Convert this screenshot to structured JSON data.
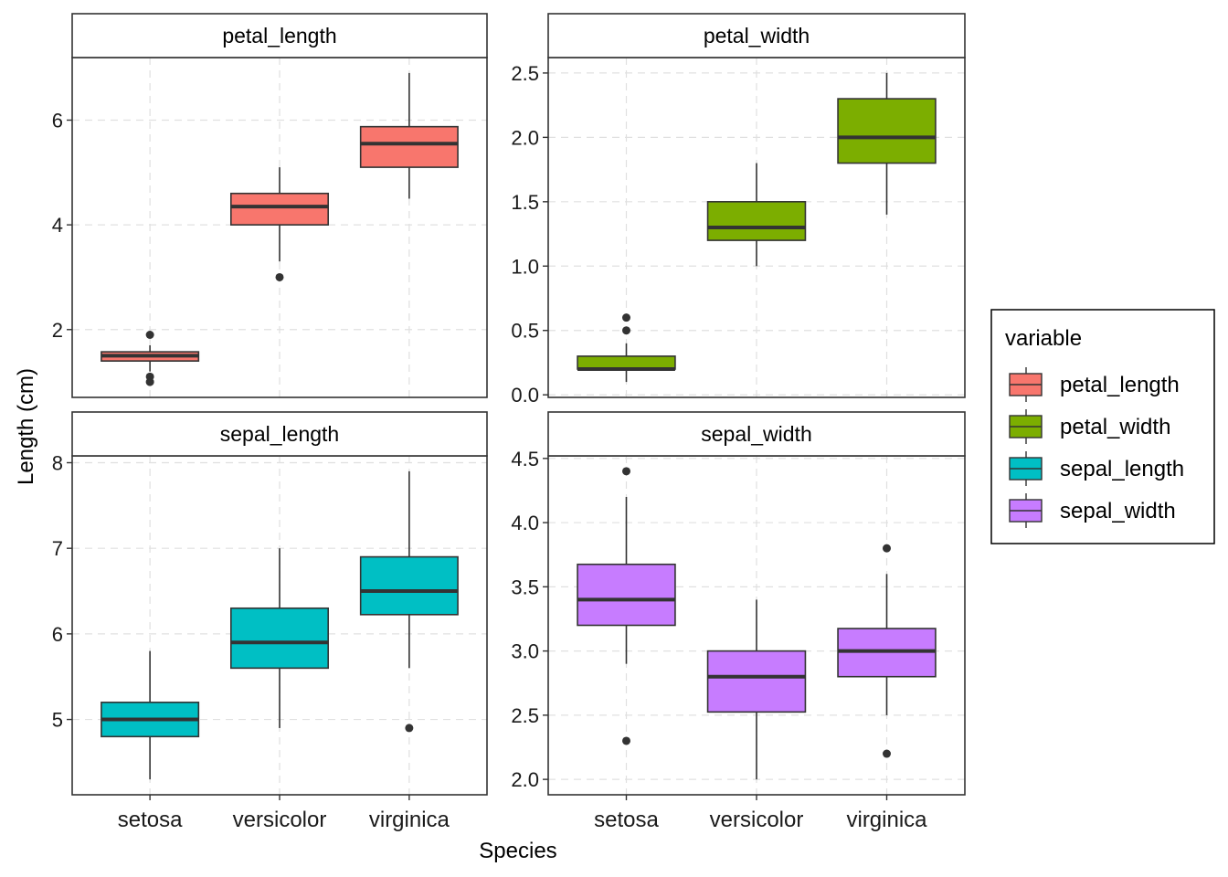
{
  "chart_data": {
    "type": "boxplot",
    "facet_by": "variable",
    "xlabel": "Species",
    "ylabel": "Length (cm)",
    "categories": [
      "setosa",
      "versicolor",
      "virginica"
    ],
    "grid": true,
    "legend": {
      "title": "variable",
      "placement": "right",
      "entries": [
        "petal_length",
        "petal_width",
        "sepal_length",
        "sepal_width"
      ]
    },
    "colors": {
      "petal_length": "#F8766D",
      "petal_width": "#7CAE00",
      "sepal_length": "#00BFC4",
      "sepal_width": "#C77CFF",
      "outline": "#333333",
      "grid": "#e0e0e0"
    },
    "panels": [
      {
        "name": "petal_length",
        "ylim": [
          0.705,
          7.195
        ],
        "yticks": [
          2,
          4,
          6
        ],
        "ytick_labels": [
          "2",
          "4",
          "6"
        ],
        "show_x_labels": false,
        "boxes": [
          {
            "category": "setosa",
            "whisker_low": 1.2,
            "q1": 1.4,
            "median": 1.5,
            "q3": 1.575,
            "whisker_high": 1.7,
            "outliers": [
              1.0,
              1.1,
              1.9
            ]
          },
          {
            "category": "versicolor",
            "whisker_low": 3.3,
            "q1": 4.0,
            "median": 4.35,
            "q3": 4.6,
            "whisker_high": 5.1,
            "outliers": [
              3.0
            ]
          },
          {
            "category": "virginica",
            "whisker_low": 4.5,
            "q1": 5.1,
            "median": 5.55,
            "q3": 5.875,
            "whisker_high": 6.9,
            "outliers": []
          }
        ]
      },
      {
        "name": "petal_width",
        "ylim": [
          -0.02,
          2.62
        ],
        "yticks": [
          0.0,
          0.5,
          1.0,
          1.5,
          2.0,
          2.5
        ],
        "ytick_labels": [
          "0.0",
          "0.5",
          "1.0",
          "1.5",
          "2.0",
          "2.5"
        ],
        "show_x_labels": false,
        "boxes": [
          {
            "category": "setosa",
            "whisker_low": 0.1,
            "q1": 0.2,
            "median": 0.2,
            "q3": 0.3,
            "whisker_high": 0.4,
            "outliers": [
              0.5,
              0.6
            ]
          },
          {
            "category": "versicolor",
            "whisker_low": 1.0,
            "q1": 1.2,
            "median": 1.3,
            "q3": 1.5,
            "whisker_high": 1.8,
            "outliers": []
          },
          {
            "category": "virginica",
            "whisker_low": 1.4,
            "q1": 1.8,
            "median": 2.0,
            "q3": 2.3,
            "whisker_high": 2.5,
            "outliers": []
          }
        ]
      },
      {
        "name": "sepal_length",
        "ylim": [
          4.12,
          8.08
        ],
        "yticks": [
          5,
          6,
          7,
          8
        ],
        "ytick_labels": [
          "5",
          "6",
          "7",
          "8"
        ],
        "show_x_labels": true,
        "boxes": [
          {
            "category": "setosa",
            "whisker_low": 4.3,
            "q1": 4.8,
            "median": 5.0,
            "q3": 5.2,
            "whisker_high": 5.8,
            "outliers": []
          },
          {
            "category": "versicolor",
            "whisker_low": 4.9,
            "q1": 5.6,
            "median": 5.9,
            "q3": 6.3,
            "whisker_high": 7.0,
            "outliers": []
          },
          {
            "category": "virginica",
            "whisker_low": 5.6,
            "q1": 6.225,
            "median": 6.5,
            "q3": 6.9,
            "whisker_high": 7.9,
            "outliers": [
              4.9
            ]
          }
        ]
      },
      {
        "name": "sepal_width",
        "ylim": [
          1.88,
          4.52
        ],
        "yticks": [
          2.0,
          2.5,
          3.0,
          3.5,
          4.0,
          4.5
        ],
        "ytick_labels": [
          "2.0",
          "2.5",
          "3.0",
          "3.5",
          "4.0",
          "4.5"
        ],
        "show_x_labels": true,
        "boxes": [
          {
            "category": "setosa",
            "whisker_low": 2.9,
            "q1": 3.2,
            "median": 3.4,
            "q3": 3.675,
            "whisker_high": 4.2,
            "outliers": [
              2.3,
              4.4
            ]
          },
          {
            "category": "versicolor",
            "whisker_low": 2.0,
            "q1": 2.525,
            "median": 2.8,
            "q3": 3.0,
            "whisker_high": 3.4,
            "outliers": []
          },
          {
            "category": "virginica",
            "whisker_low": 2.5,
            "q1": 2.8,
            "median": 3.0,
            "q3": 3.175,
            "whisker_high": 3.6,
            "outliers": [
              2.2,
              3.8
            ]
          }
        ]
      }
    ]
  }
}
